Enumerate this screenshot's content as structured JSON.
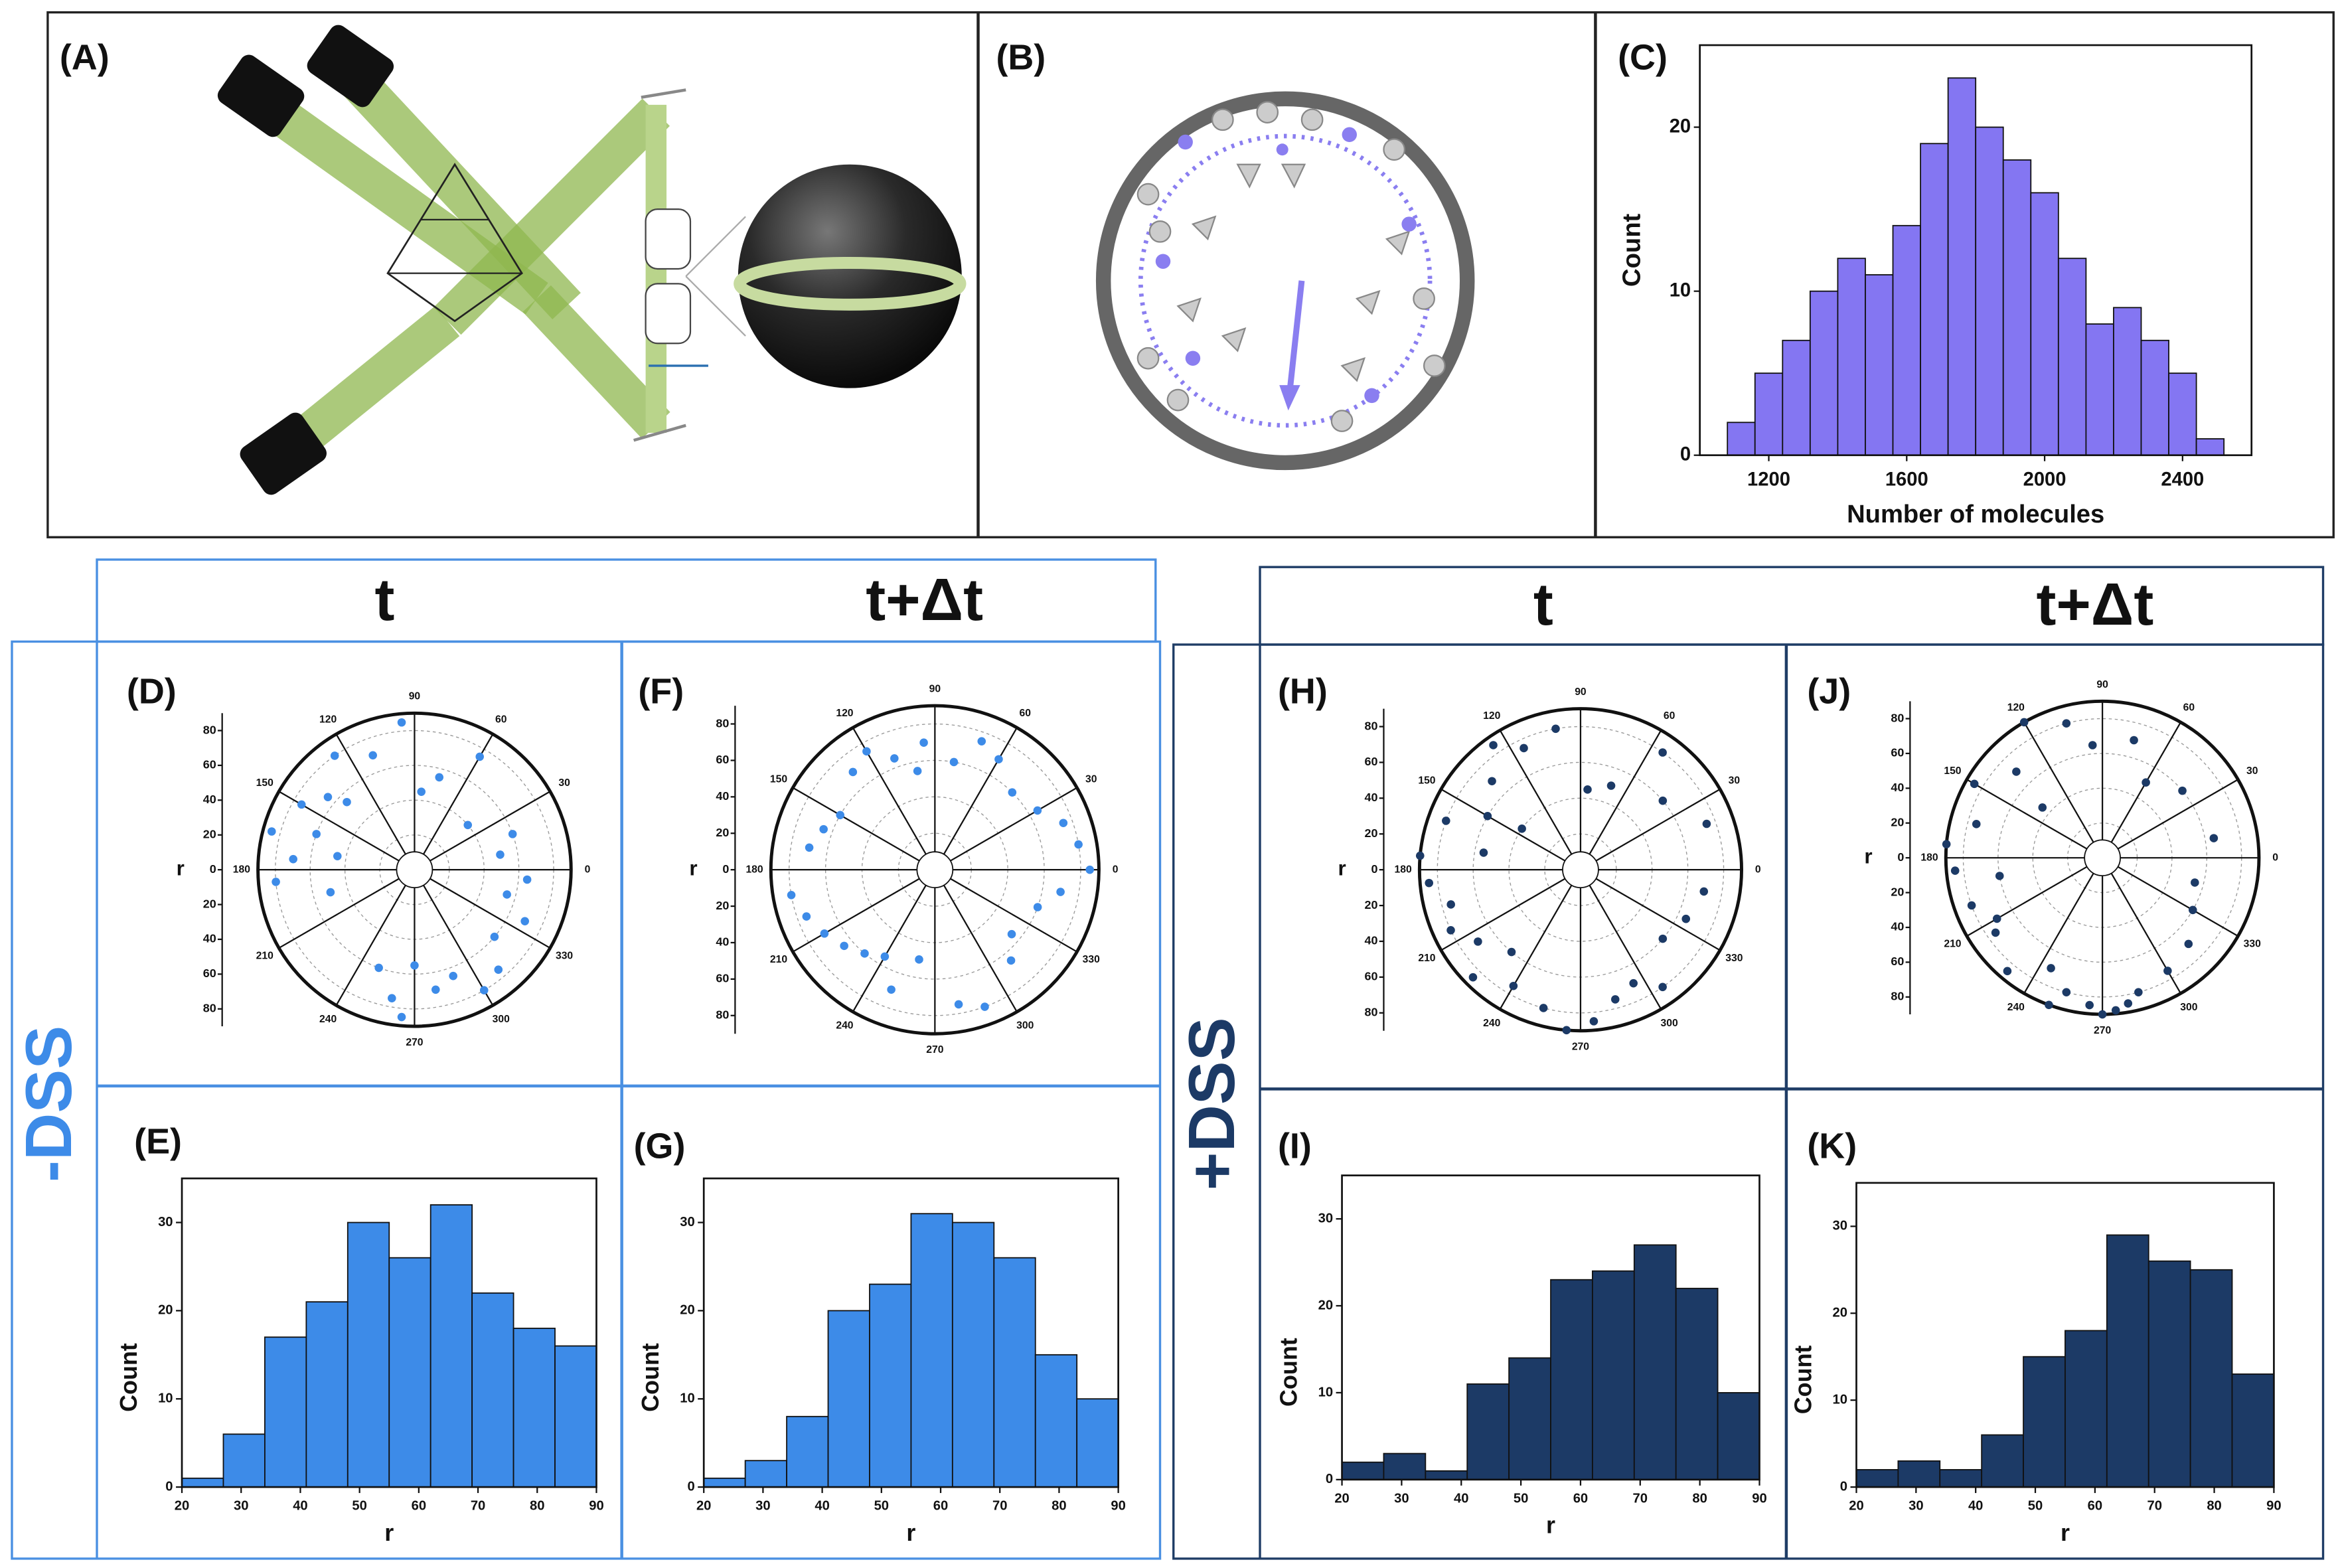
{
  "panels": {
    "A": "(A)",
    "B": "(B)"
  },
  "groups": [
    {
      "label": "-DSS",
      "columns": [
        "t",
        "t+Δt"
      ]
    },
    {
      "label": "+DSS",
      "columns": [
        "t",
        "t+Δt"
      ]
    }
  ],
  "chart_data": [
    {
      "type": "histogram",
      "panel": "(C)",
      "color": "#8476f2",
      "bins": [
        1080,
        1160,
        1240,
        1320,
        1400,
        1480,
        1560,
        1640,
        1720,
        1800,
        1880,
        1960,
        2040,
        2120,
        2200,
        2280,
        2360,
        2440,
        2520
      ],
      "counts": [
        2,
        5,
        7,
        10,
        12,
        11,
        14,
        19,
        23,
        20,
        18,
        16,
        12,
        8,
        9,
        7,
        5,
        1
      ],
      "xlim": [
        1000,
        2600
      ],
      "xticks": [
        1200,
        1600,
        2000,
        2400
      ],
      "ylim": [
        0,
        25
      ],
      "yticks": [
        0,
        10,
        20
      ],
      "xlabel": "Number of molecules",
      "ylabel": "Count"
    },
    {
      "type": "polar",
      "panel": "(D)",
      "color": "#3d8be8",
      "rlim": [
        0,
        90
      ],
      "rticks": [
        0,
        20,
        40,
        60,
        80
      ],
      "thetaticks": [
        0,
        30,
        60,
        90,
        120,
        150,
        180,
        210,
        240,
        270,
        300,
        330
      ],
      "rlabel": "r",
      "theta": [
        95,
        110,
        125,
        135,
        140,
        150,
        160,
        165,
        170,
        175,
        185,
        195,
        250,
        260,
        265,
        270,
        280,
        290,
        300,
        310,
        320,
        335,
        345,
        355,
        10,
        20,
        40,
        60,
        75,
        85
      ],
      "r": [
        85,
        70,
        80,
        55,
        65,
        75,
        60,
        85,
        45,
        70,
        80,
        50,
        60,
        75,
        85,
        55,
        70,
        65,
        80,
        75,
        60,
        70,
        55,
        65,
        50,
        60,
        40,
        75,
        55,
        45
      ]
    },
    {
      "type": "histogram",
      "panel": "(E)",
      "color": "#3d8be8",
      "bins": [
        20,
        27,
        34,
        41,
        48,
        55,
        62,
        69,
        76,
        83,
        90
      ],
      "counts": [
        1,
        6,
        17,
        21,
        30,
        26,
        32,
        22,
        18,
        16
      ],
      "xlim": [
        20,
        90
      ],
      "xticks": [
        20,
        30,
        40,
        50,
        60,
        70,
        80,
        90
      ],
      "ylim": [
        0,
        35
      ],
      "yticks": [
        0,
        10,
        20,
        30
      ],
      "xlabel": "r",
      "ylabel": "Count"
    },
    {
      "type": "polar",
      "panel": "(F)",
      "color": "#3d8be8",
      "rlim": [
        0,
        90
      ],
      "rticks": [
        0,
        20,
        40,
        60,
        80
      ],
      "thetaticks": [
        0,
        30,
        60,
        90,
        120,
        150,
        180,
        210,
        240,
        270,
        300,
        330
      ],
      "rlabel": "r",
      "theta": [
        80,
        95,
        100,
        110,
        70,
        60,
        45,
        30,
        20,
        10,
        0,
        350,
        340,
        190,
        200,
        210,
        220,
        230,
        240,
        250,
        260,
        290,
        280,
        170,
        160,
        150,
        130,
        120,
        320,
        310
      ],
      "r": [
        60,
        70,
        55,
        65,
        75,
        70,
        60,
        65,
        75,
        80,
        85,
        70,
        60,
        80,
        75,
        70,
        65,
        60,
        55,
        70,
        50,
        80,
        75,
        70,
        65,
        60,
        70,
        75,
        55,
        65
      ]
    },
    {
      "type": "histogram",
      "panel": "(G)",
      "color": "#3d8be8",
      "bins": [
        20,
        27,
        34,
        41,
        48,
        55,
        62,
        69,
        76,
        83,
        90
      ],
      "counts": [
        1,
        3,
        8,
        20,
        23,
        31,
        30,
        26,
        15,
        10
      ],
      "xlim": [
        20,
        90
      ],
      "xticks": [
        20,
        30,
        40,
        50,
        60,
        70,
        80,
        90
      ],
      "ylim": [
        0,
        35
      ],
      "yticks": [
        0,
        10,
        20,
        30
      ],
      "xlabel": "r",
      "ylabel": "Count"
    },
    {
      "type": "polar",
      "panel": "(H)",
      "color": "#1c3a66",
      "rlim": [
        0,
        90
      ],
      "rticks": [
        0,
        20,
        40,
        60,
        80
      ],
      "thetaticks": [
        0,
        30,
        60,
        90,
        120,
        150,
        180,
        210,
        240,
        270,
        300,
        330
      ],
      "rlabel": "r",
      "theta": [
        100,
        115,
        125,
        135,
        150,
        160,
        175,
        185,
        195,
        205,
        215,
        225,
        240,
        255,
        265,
        275,
        285,
        295,
        305,
        320,
        335,
        350,
        20,
        40,
        55,
        70,
        85,
        145,
        170,
        230
      ],
      "r": [
        80,
        75,
        85,
        70,
        60,
        80,
        90,
        85,
        75,
        80,
        70,
        85,
        75,
        80,
        90,
        85,
        75,
        70,
        80,
        60,
        65,
        70,
        75,
        60,
        80,
        50,
        45,
        40,
        55,
        60
      ]
    },
    {
      "type": "histogram",
      "panel": "(I)",
      "color": "#1c3a66",
      "bins": [
        20,
        27,
        34,
        41,
        48,
        55,
        62,
        69,
        76,
        83,
        90
      ],
      "counts": [
        2,
        3,
        1,
        11,
        14,
        23,
        24,
        27,
        22,
        10
      ],
      "xlim": [
        20,
        90
      ],
      "xticks": [
        20,
        30,
        40,
        50,
        60,
        70,
        80,
        90
      ],
      "ylim": [
        0,
        35
      ],
      "yticks": [
        0,
        10,
        20,
        30
      ],
      "xlabel": "r",
      "ylabel": "Count"
    },
    {
      "type": "polar",
      "panel": "(J)",
      "color": "#1c3a66",
      "rlim": [
        0,
        90
      ],
      "rticks": [
        0,
        20,
        40,
        60,
        80
      ],
      "thetaticks": [
        0,
        30,
        60,
        90,
        120,
        150,
        180,
        210,
        240,
        270,
        300,
        330
      ],
      "rlabel": "r",
      "theta": [
        95,
        105,
        120,
        135,
        150,
        165,
        175,
        185,
        200,
        215,
        230,
        245,
        255,
        265,
        270,
        275,
        285,
        300,
        315,
        330,
        345,
        10,
        40,
        60,
        75,
        140,
        190,
        210,
        250,
        280
      ],
      "r": [
        65,
        80,
        90,
        70,
        85,
        75,
        90,
        85,
        80,
        75,
        85,
        70,
        80,
        85,
        90,
        88,
        80,
        75,
        70,
        60,
        55,
        65,
        60,
        50,
        70,
        45,
        60,
        70,
        90,
        85
      ]
    },
    {
      "type": "histogram",
      "panel": "(K)",
      "color": "#1c3a66",
      "bins": [
        20,
        27,
        34,
        41,
        48,
        55,
        62,
        69,
        76,
        83,
        90
      ],
      "counts": [
        2,
        3,
        2,
        6,
        15,
        18,
        29,
        26,
        25,
        13
      ],
      "xlim": [
        20,
        90
      ],
      "xticks": [
        20,
        30,
        40,
        50,
        60,
        70,
        80,
        90
      ],
      "ylim": [
        0,
        35
      ],
      "yticks": [
        0,
        10,
        20,
        30
      ],
      "xlabel": "r",
      "ylabel": "Count"
    }
  ]
}
